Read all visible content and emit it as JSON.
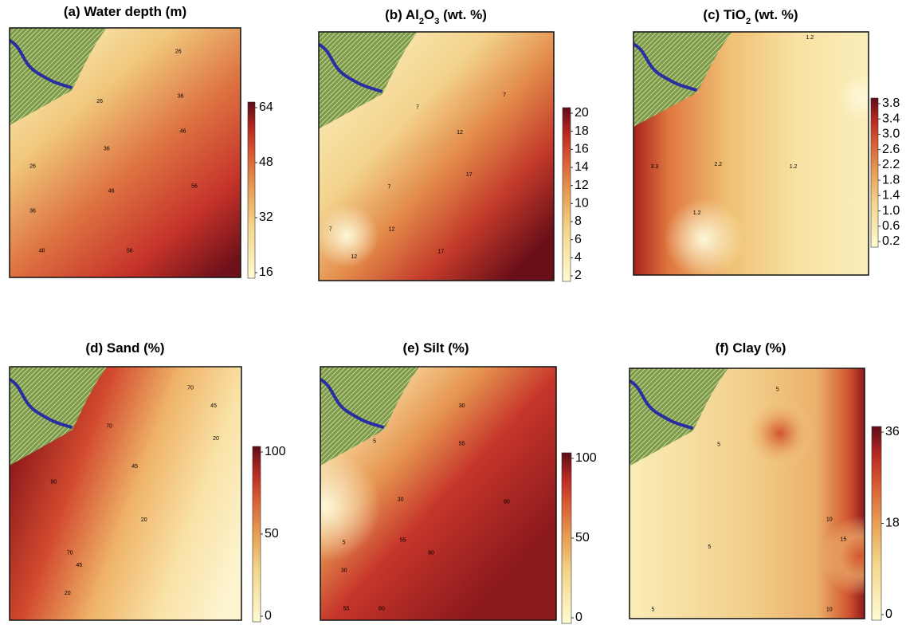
{
  "panels": [
    {
      "title": [
        "(a) Water depth (m)"
      ],
      "colorbar_ticks": [
        "64",
        "48",
        "32",
        "16"
      ],
      "contour_labels": [
        "26",
        "26",
        "36",
        "46",
        "36",
        "26",
        "56",
        "46",
        "36",
        "46",
        "56"
      ]
    },
    {
      "title": [
        "(b) Al",
        "2",
        "O",
        "3",
        " (wt. %)"
      ],
      "colorbar_ticks": [
        "20",
        "18",
        "16",
        "14",
        "12",
        "10",
        "8",
        "6",
        "4",
        "2"
      ],
      "contour_labels": [
        "7",
        "7",
        "12",
        "17",
        "7",
        "12",
        "7",
        "12",
        "17"
      ]
    },
    {
      "title": [
        "(c) TiO",
        "2",
        " (wt. %)"
      ],
      "colorbar_ticks": [
        "3.8",
        "3.4",
        "3.0",
        "2.6",
        "2.2",
        "1.8",
        "1.4",
        "1.0",
        "0.6",
        "0.2"
      ],
      "contour_labels": [
        "1.2",
        "3.3",
        "2.2",
        "1.2",
        "1.2"
      ]
    },
    {
      "title": [
        "(d) Sand (%)"
      ],
      "colorbar_ticks": [
        "100",
        "50",
        "0"
      ],
      "contour_labels": [
        "70",
        "45",
        "70",
        "20",
        "45",
        "90",
        "20",
        "70",
        "45",
        "20"
      ]
    },
    {
      "title": [
        "(e) Silt (%)"
      ],
      "colorbar_ticks": [
        "100",
        "50",
        "0"
      ],
      "contour_labels": [
        "30",
        "5",
        "55",
        "30",
        "80",
        "5",
        "55",
        "80",
        "30",
        "55",
        "80"
      ]
    },
    {
      "title": [
        "(f) Clay (%)"
      ],
      "colorbar_ticks": [
        "36",
        "18",
        "0"
      ],
      "contour_labels": [
        "5",
        "5",
        "10",
        "15",
        "5",
        "5",
        "10"
      ]
    }
  ]
}
